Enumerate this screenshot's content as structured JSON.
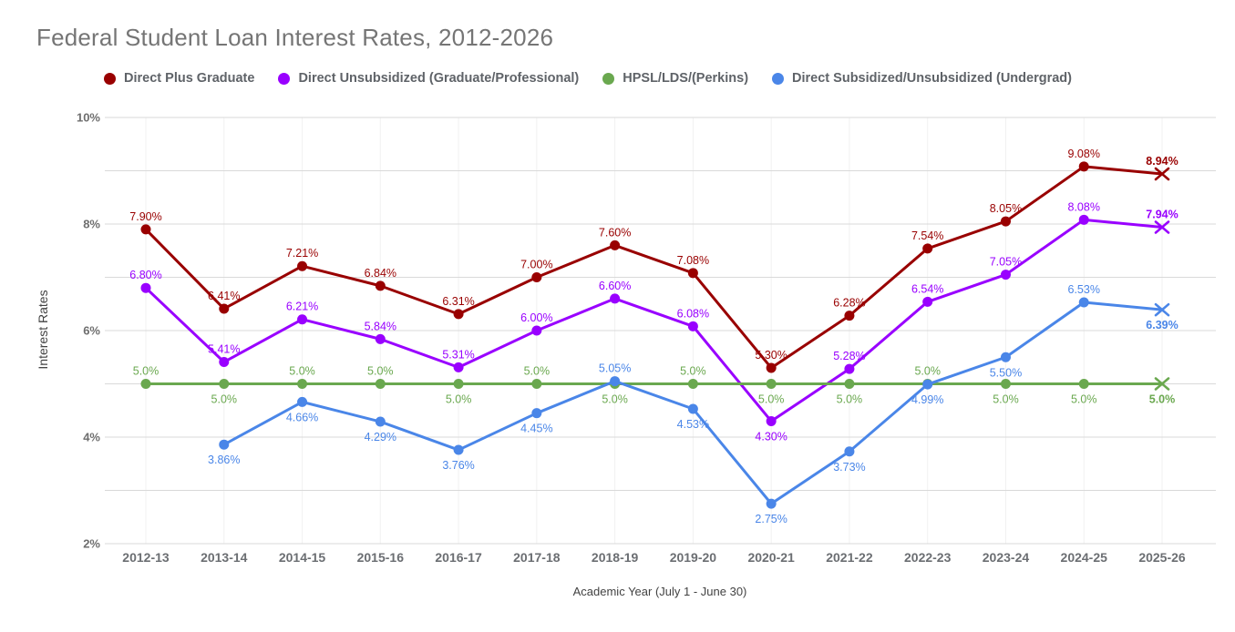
{
  "title": "Federal Student Loan Interest Rates, 2012-2026",
  "axes": {
    "y_label": "Interest Rates",
    "x_label": "Academic Year (July 1 - June 30)",
    "y_ticks": [
      {
        "label": "10%",
        "value": 10
      },
      {
        "label": "8%",
        "value": 8
      },
      {
        "label": "6%",
        "value": 6
      },
      {
        "label": "4%",
        "value": 4
      },
      {
        "label": "2%",
        "value": 2
      }
    ]
  },
  "chart_data": {
    "type": "line",
    "title": "Federal Student Loan Interest Rates, 2012-2026",
    "xlabel": "Academic Year (July 1 - June 30)",
    "ylabel": "Interest Rates",
    "ylim": [
      2,
      10
    ],
    "grid": true,
    "legend_position": "top",
    "last_point_marker": "x",
    "last_point_bold_label": true,
    "categories": [
      "2012-13",
      "2013-14",
      "2014-15",
      "2015-16",
      "2016-17",
      "2017-18",
      "2018-19",
      "2019-20",
      "2020-21",
      "2021-22",
      "2022-23",
      "2023-24",
      "2024-25",
      "2025-26"
    ],
    "series": [
      {
        "name": "Direct Plus Graduate",
        "color": "#990000",
        "values": [
          7.9,
          6.41,
          7.21,
          6.84,
          6.31,
          7.0,
          7.6,
          7.08,
          5.3,
          6.28,
          7.54,
          8.05,
          9.08,
          8.94
        ],
        "labels": [
          "7.90%",
          "6.41%",
          "7.21%",
          "6.84%",
          "6.31%",
          "7.00%",
          "7.60%",
          "7.08%",
          "5.30%",
          "6.28%",
          "7.54%",
          "8.05%",
          "9.08%",
          "8.94%"
        ],
        "label_side": [
          "a",
          "a",
          "a",
          "a",
          "a",
          "a",
          "a",
          "a",
          "a",
          "a",
          "a",
          "a",
          "a",
          "a"
        ]
      },
      {
        "name": "Direct Unsubsidized (Graduate/Professional)",
        "color": "#9900ff",
        "values": [
          6.8,
          5.41,
          6.21,
          5.84,
          5.31,
          6.0,
          6.6,
          6.08,
          4.3,
          5.28,
          6.54,
          7.05,
          8.08,
          7.94
        ],
        "labels": [
          "6.80%",
          "5.41%",
          "6.21%",
          "5.84%",
          "5.31%",
          "6.00%",
          "6.60%",
          "6.08%",
          "4.30%",
          "5.28%",
          "6.54%",
          "7.05%",
          "8.08%",
          "7.94%"
        ],
        "label_side": [
          "a",
          "a",
          "a",
          "a",
          "a",
          "a",
          "a",
          "a",
          "b",
          "a",
          "a",
          "a",
          "a",
          "a"
        ]
      },
      {
        "name": "HPSL/LDS/(Perkins)",
        "color": "#6aa84f",
        "values": [
          5.0,
          5.0,
          5.0,
          5.0,
          5.0,
          5.0,
          5.0,
          5.0,
          5.0,
          5.0,
          5.0,
          5.0,
          5.0,
          5.0
        ],
        "labels": [
          "5.0%",
          "5.0%",
          "5.0%",
          "5.0%",
          "5.0%",
          "5.0%",
          "5.0%",
          "5.0%",
          "5.0%",
          "5.0%",
          "5.0%",
          "5.0%",
          "5.0%",
          "5.0%"
        ],
        "label_side": [
          "a",
          "b",
          "a",
          "a",
          "b",
          "a",
          "b",
          "a",
          "b",
          "b",
          "a",
          "b",
          "b",
          "b"
        ]
      },
      {
        "name": "Direct Subsidized/Unsubsidized (Undergrad)",
        "color": "#4a86e8",
        "values": [
          null,
          3.86,
          4.66,
          4.29,
          3.76,
          4.45,
          5.05,
          4.53,
          2.75,
          3.73,
          4.99,
          5.5,
          6.53,
          6.39
        ],
        "labels": [
          null,
          "3.86%",
          "4.66%",
          "4.29%",
          "3.76%",
          "4.45%",
          "5.05%",
          "4.53%",
          "2.75%",
          "3.73%",
          "4.99%",
          "5.50%",
          "6.53%",
          "6.39%"
        ],
        "label_side": [
          null,
          "b",
          "b",
          "b",
          "b",
          "b",
          "a",
          "b",
          "b",
          "b",
          "b",
          "b",
          "a",
          "b"
        ]
      }
    ]
  }
}
